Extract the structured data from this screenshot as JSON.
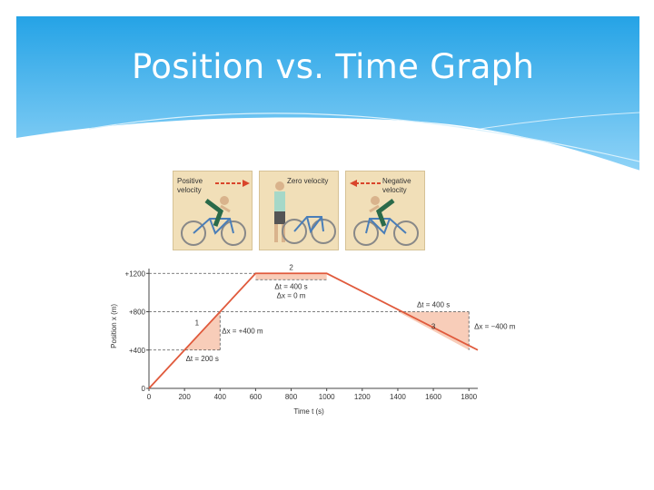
{
  "slide": {
    "title": "Position vs. Time Graph"
  },
  "panels": [
    {
      "label": "Positive velocity",
      "arrow": "right-arrow-icon"
    },
    {
      "label": "Zero velocity",
      "arrow": ""
    },
    {
      "label": "Negative velocity",
      "arrow": "left-arrow-icon"
    }
  ],
  "chart_data": {
    "type": "line",
    "title": "",
    "xlabel": "Time t (s)",
    "ylabel": "Position x (m)",
    "x_ticks": [
      "0",
      "200",
      "400",
      "600",
      "800",
      "1000",
      "1200",
      "1400",
      "1600",
      "1800"
    ],
    "y_ticks": [
      "0",
      "+400",
      "+800",
      "+1200"
    ],
    "xlim": [
      0,
      1850
    ],
    "ylim": [
      0,
      1250
    ],
    "series": [
      {
        "x": [
          0,
          600,
          1000,
          1850
        ],
        "y": [
          0,
          1200,
          1200,
          400
        ]
      }
    ],
    "annotations": [
      {
        "label": "1",
        "dt": "Δt = 200 s",
        "dx": "Δx = +400 m"
      },
      {
        "label": "2",
        "dt": "Δt = 400 s",
        "dx": "Δx = 0 m"
      },
      {
        "label": "3",
        "dt": "Δt = 400 s",
        "dx": "Δx = −400 m"
      }
    ],
    "colors": {
      "line": "#e05a3c",
      "shade": "#f7c4ad"
    }
  }
}
